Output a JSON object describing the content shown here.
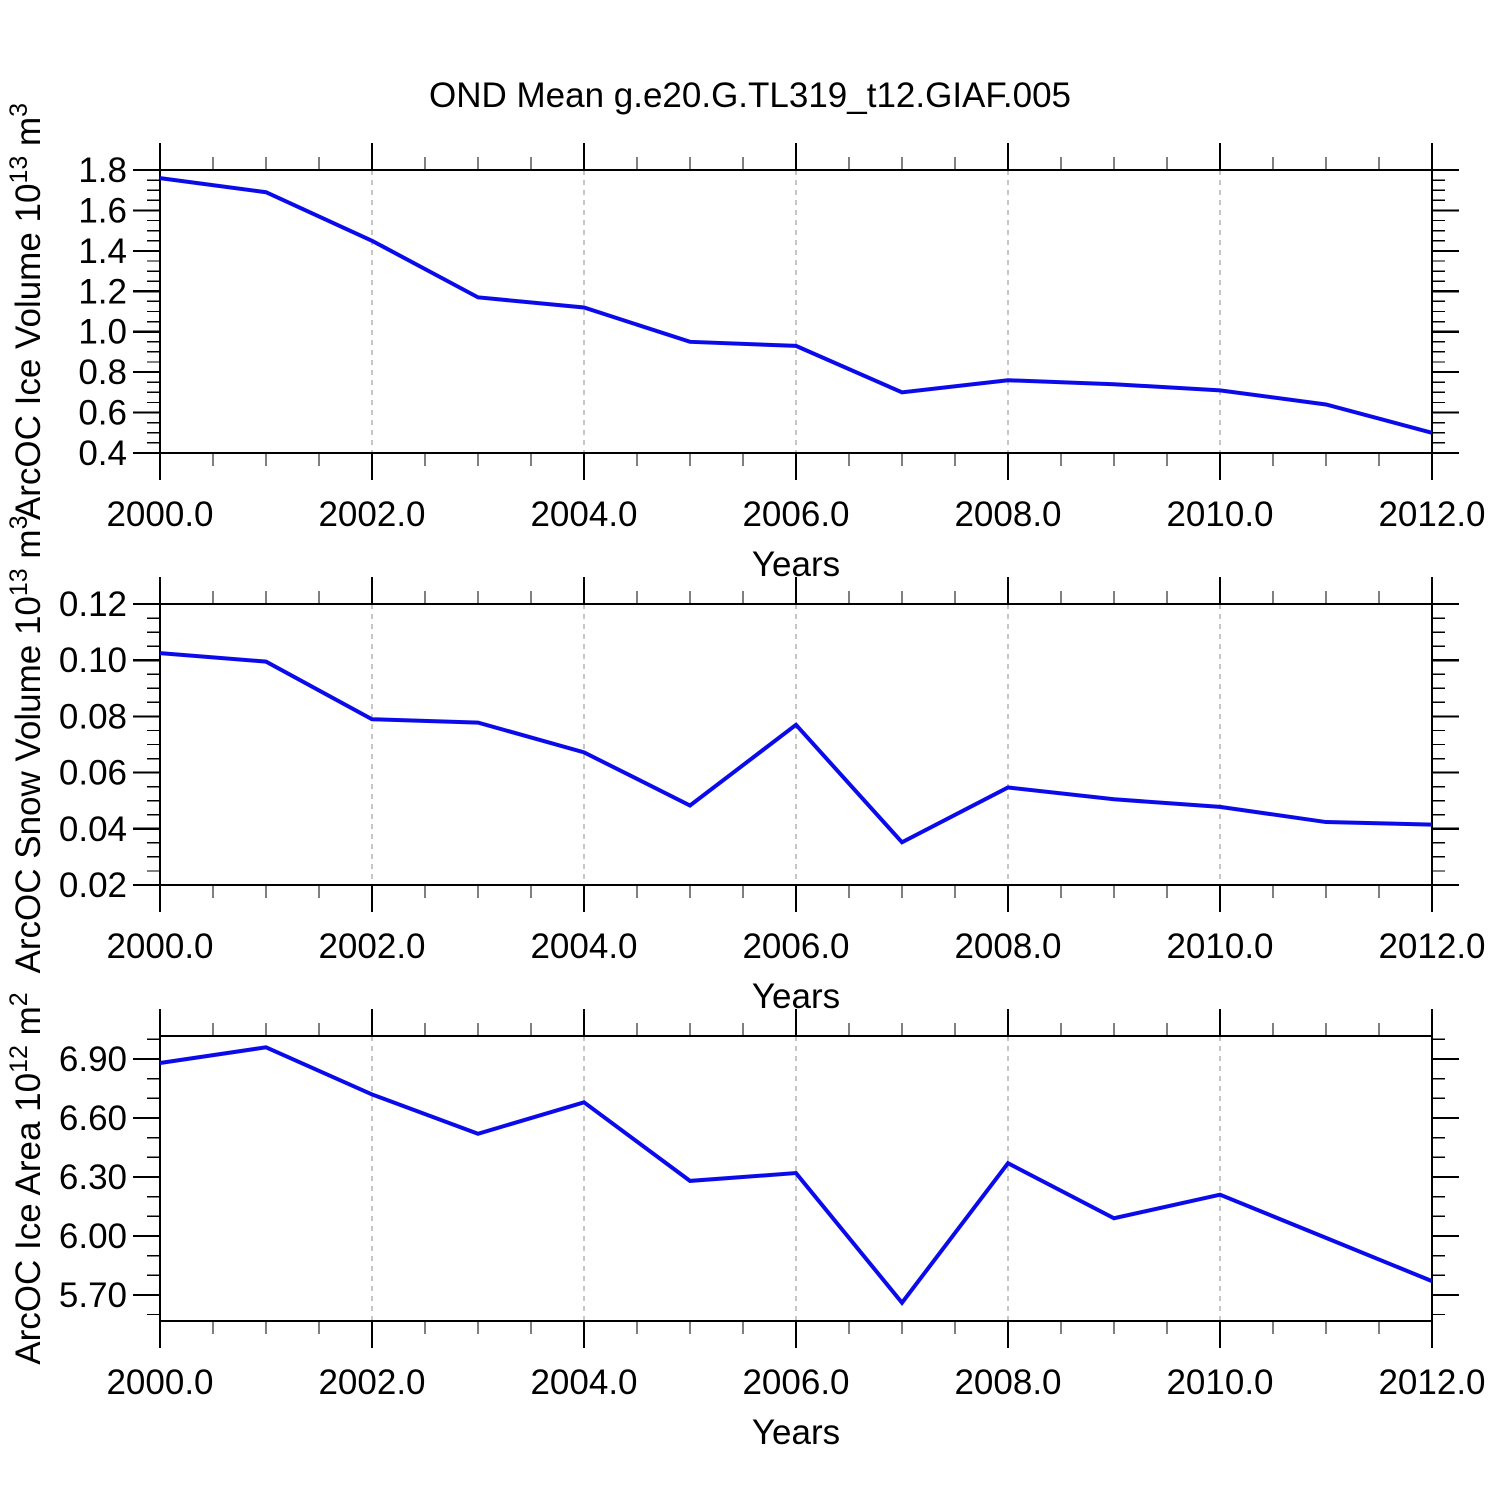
{
  "page_title": "OND Mean g.e20.G.TL319_t12.GIAF.005",
  "colors": {
    "line": "#0A0AEB",
    "axis": "#000000",
    "gridline": "#8C8C8C",
    "text": "#000000",
    "background": "#FFFFFF"
  },
  "x_axis": {
    "label": "Years",
    "range": [
      2000.0,
      2012.0
    ],
    "major_tick_step": 2.0,
    "minor_tick_step": 0.5,
    "tick_labels": [
      "2000.0",
      "2002.0",
      "2004.0",
      "2006.0",
      "2008.0",
      "2010.0",
      "2012.0"
    ],
    "gridline_years": [
      2002.0,
      2004.0,
      2006.0,
      2008.0,
      2010.0
    ]
  },
  "chart_data": [
    {
      "id": "ice-volume",
      "type": "line",
      "title": "",
      "xlabel": "Years",
      "ylabel_text": "ArcOC Ice Volume 10^13 m^3",
      "ylabel_rich": [
        {
          "text": "ArcOC Ice Volume 10"
        },
        {
          "text": "13",
          "sup": true
        },
        {
          "text": " m"
        },
        {
          "text": "3",
          "sup": true
        }
      ],
      "x": [
        2000,
        2001,
        2002,
        2003,
        2004,
        2005,
        2006,
        2007,
        2008,
        2009,
        2010,
        2011,
        2012
      ],
      "values": [
        1.76,
        1.69,
        1.45,
        1.17,
        1.12,
        0.95,
        0.93,
        0.7,
        0.76,
        0.74,
        0.71,
        0.64,
        0.5
      ],
      "y_domain": [
        0.4,
        1.8
      ],
      "y_tick_values": [
        0.4,
        0.6,
        0.8,
        1.0,
        1.2,
        1.4,
        1.6,
        1.8
      ],
      "y_tick_labels": [
        "0.4",
        "0.6",
        "0.8",
        "1.0",
        "1.2",
        "1.4",
        "1.6",
        "1.8"
      ],
      "y_minor_step": 0.05,
      "grid": "vertical-dashed",
      "legend": "none"
    },
    {
      "id": "snow-volume",
      "type": "line",
      "title": "",
      "xlabel": "Years",
      "ylabel_text": "ArcOC Snow Volume 10^13 m^3",
      "ylabel_rich": [
        {
          "text": "ArcOC Snow Volume 10"
        },
        {
          "text": "13",
          "sup": true
        },
        {
          "text": " m"
        },
        {
          "text": "3",
          "sup": true
        }
      ],
      "x": [
        2000,
        2001,
        2002,
        2003,
        2004,
        2005,
        2006,
        2007,
        2008,
        2009,
        2010,
        2011,
        2012
      ],
      "values": [
        0.1025,
        0.0995,
        0.079,
        0.0778,
        0.0672,
        0.0483,
        0.077,
        0.0352,
        0.0547,
        0.0505,
        0.0478,
        0.0424,
        0.0415
      ],
      "y_domain": [
        0.02,
        0.12
      ],
      "y_tick_values": [
        0.02,
        0.04,
        0.06,
        0.08,
        0.1,
        0.12
      ],
      "y_tick_labels": [
        "0.02",
        "0.04",
        "0.06",
        "0.08",
        "0.10",
        "0.12"
      ],
      "y_minor_step": 0.005,
      "grid": "vertical-dashed",
      "legend": "none"
    },
    {
      "id": "ice-area",
      "type": "line",
      "title": "",
      "xlabel": "Years",
      "ylabel_text": "ArcOC Ice Area 10^12 m^2",
      "ylabel_rich": [
        {
          "text": "ArcOC Ice Area 10"
        },
        {
          "text": "12",
          "sup": true
        },
        {
          "text": " m"
        },
        {
          "text": "2",
          "sup": true
        }
      ],
      "x": [
        2000,
        2001,
        2002,
        2003,
        2004,
        2005,
        2006,
        2007,
        2008,
        2009,
        2010,
        2011,
        2012
      ],
      "values": [
        6.88,
        6.96,
        6.72,
        6.52,
        6.68,
        6.28,
        6.32,
        5.66,
        6.37,
        6.09,
        6.21,
        5.99,
        5.77
      ],
      "y_domain": [
        5.567,
        7.0175
      ],
      "y_tick_values": [
        5.7,
        6.0,
        6.3,
        6.6,
        6.9
      ],
      "y_tick_labels": [
        "5.70",
        "6.00",
        "6.30",
        "6.60",
        "6.90"
      ],
      "y_minor_step": 0.1,
      "grid": "vertical-dashed",
      "legend": "none"
    }
  ]
}
